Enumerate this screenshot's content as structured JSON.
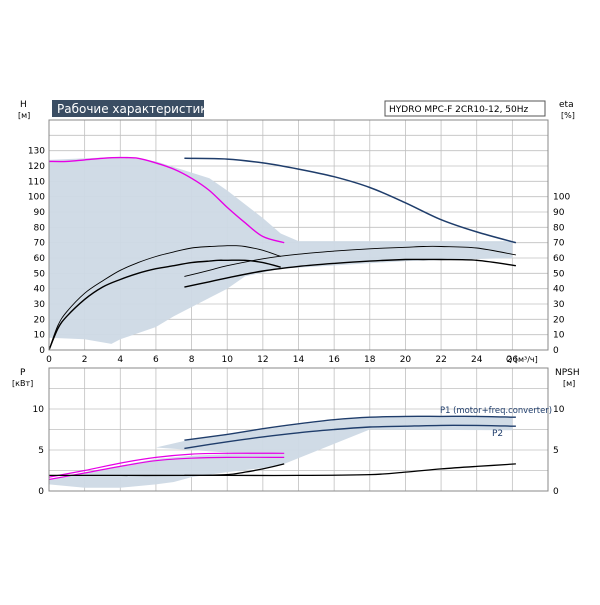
{
  "chart_data": [
    {
      "type": "line",
      "title": "Рабочие характеристики",
      "subtitle": "HYDRO MPC-F 2CR10-12, 50Hz",
      "xlabel": "Q [м³/ч]",
      "ylabel": "H",
      "ylabel_unit": "[м]",
      "y2label": "eta",
      "y2label_unit": "[%]",
      "xlim": [
        0,
        28
      ],
      "ylim": [
        0,
        150
      ],
      "y2lim": [
        0,
        150
      ],
      "grid": true,
      "x_ticks": [
        "0",
        "2",
        "4",
        "6",
        "8",
        "10",
        "12",
        "14",
        "16",
        "18",
        "20",
        "22",
        "24",
        "26"
      ],
      "y_ticks": [
        "0",
        "10",
        "20",
        "30",
        "40",
        "50",
        "60",
        "70",
        "80",
        "90",
        "100",
        "110",
        "120",
        "130"
      ],
      "y2_ticks": [
        "0",
        "10",
        "20",
        "30",
        "40",
        "50",
        "60",
        "70",
        "80",
        "90",
        "100"
      ],
      "colors": {
        "region": "#cdd9e5",
        "head_single": "#e600e6",
        "head_max": "#1f3d6b",
        "eta": "#000000",
        "grid": "#c0c0c0",
        "title_box": "#3a4d63"
      },
      "region": [
        [
          0,
          124
        ],
        [
          4,
          126
        ],
        [
          6,
          123
        ],
        [
          9,
          112
        ],
        [
          10,
          104
        ],
        [
          12,
          86
        ],
        [
          13,
          76
        ],
        [
          14,
          71
        ],
        [
          26,
          71
        ],
        [
          26,
          60
        ],
        [
          20,
          58
        ],
        [
          13,
          53
        ],
        [
          11,
          48
        ],
        [
          10,
          40
        ],
        [
          9,
          34
        ],
        [
          7,
          22
        ],
        [
          6,
          15
        ],
        [
          4,
          7
        ],
        [
          3.5,
          4
        ],
        [
          2,
          7
        ],
        [
          0,
          8
        ]
      ],
      "series": [
        {
          "name": "",
          "role": "head_single",
          "x": [
            0,
            1,
            2,
            3,
            4,
            5,
            6,
            7,
            8,
            9,
            10,
            11,
            12,
            13.2
          ],
          "y": [
            123,
            123,
            124,
            125,
            125.5,
            125,
            122,
            118,
            112,
            104,
            93,
            83,
            74,
            70
          ]
        },
        {
          "name": "",
          "role": "head_max",
          "x": [
            7.6,
            10,
            12,
            14,
            16,
            18,
            20,
            22,
            24,
            26.2
          ],
          "y": [
            125,
            124.5,
            122,
            118,
            113,
            106,
            96,
            85,
            77,
            70
          ]
        },
        {
          "name": "",
          "role": "eta",
          "x": [
            0,
            0.5,
            1,
            2,
            3,
            4,
            5,
            6,
            7,
            8,
            9,
            10,
            10.5,
            11,
            12,
            13
          ],
          "y": [
            0,
            16,
            25,
            37,
            45,
            52,
            57,
            61,
            64,
            66.5,
            67.5,
            68,
            68,
            67.5,
            65,
            61
          ]
        },
        {
          "name": "",
          "role": "eta",
          "x": [
            0,
            0.5,
            1,
            2,
            3,
            4,
            5,
            6,
            7,
            8,
            9,
            9.5,
            10,
            11,
            12,
            13
          ],
          "y": [
            0,
            14,
            22,
            33,
            41,
            46,
            50,
            53,
            55,
            57,
            58,
            58.5,
            58.5,
            58.5,
            57,
            54
          ]
        },
        {
          "name": "",
          "role": "eta",
          "x": [
            7.6,
            9,
            10,
            12,
            14,
            16,
            18,
            20,
            21,
            22,
            24,
            26.2
          ],
          "y": [
            48,
            52,
            55,
            59.5,
            62.5,
            64.5,
            66,
            67,
            67.5,
            67.5,
            66.5,
            62
          ]
        },
        {
          "name": "",
          "role": "eta",
          "x": [
            7.6,
            9,
            10,
            12,
            14,
            16,
            18,
            20,
            21,
            22,
            24,
            26.2
          ],
          "y": [
            41,
            44.5,
            47,
            51.5,
            54.5,
            56.5,
            58,
            59,
            59,
            59,
            58.5,
            55
          ]
        }
      ]
    },
    {
      "type": "line",
      "xlabel": "",
      "ylabel": "P",
      "ylabel_unit": "[кВт]",
      "y2label": "NPSH",
      "y2label_unit": "[м]",
      "xlim": [
        0,
        28
      ],
      "ylim": [
        0,
        15
      ],
      "y2lim": [
        0,
        15
      ],
      "grid": true,
      "y_ticks": [
        "0",
        "5",
        "10"
      ],
      "y2_ticks": [
        "0",
        "5",
        "10"
      ],
      "colors": {
        "region": "#cdd9e5",
        "p1_single": "#e600e6",
        "p_max": "#1f3d6b",
        "npsh": "#000000"
      },
      "region": [
        [
          0,
          1.3
        ],
        [
          2,
          2.2
        ],
        [
          4,
          3.1
        ],
        [
          6,
          3.9
        ],
        [
          8,
          4.3
        ],
        [
          10,
          4.5
        ],
        [
          13.2,
          4.5
        ],
        [
          13.2,
          4.2
        ],
        [
          6,
          5.3
        ],
        [
          8,
          6.3
        ],
        [
          10,
          6.9
        ],
        [
          12,
          7.5
        ],
        [
          14,
          8.1
        ],
        [
          16,
          8.6
        ],
        [
          18,
          9.0
        ],
        [
          26,
          9.1
        ],
        [
          26,
          7.4
        ],
        [
          18,
          7.5
        ],
        [
          13.2,
          3.3
        ],
        [
          12,
          2.8
        ],
        [
          10,
          2.3
        ],
        [
          8,
          1.7
        ],
        [
          7,
          1.1
        ],
        [
          6,
          0.8
        ],
        [
          4,
          0.4
        ],
        [
          2,
          0.4
        ],
        [
          0,
          0.8
        ]
      ],
      "labels": {
        "p1": "P1 (motor+freq.converter)",
        "p2": "P2"
      },
      "series": [
        {
          "name": "P1 (motor+freq.converter)",
          "role": "p1_single",
          "x": [
            0,
            2,
            4,
            6,
            8,
            10,
            13.2
          ],
          "y": [
            1.7,
            2.5,
            3.4,
            4.1,
            4.5,
            4.6,
            4.6
          ]
        },
        {
          "name": "P2",
          "role": "p1_single",
          "x": [
            0,
            2,
            4,
            6,
            8,
            10,
            13.2
          ],
          "y": [
            1.4,
            2.2,
            3.0,
            3.7,
            4.0,
            4.1,
            4.1
          ]
        },
        {
          "name": "P1 (motor+freq.converter)",
          "role": "p_max",
          "x": [
            7.6,
            10,
            12,
            14,
            16,
            18,
            20,
            22,
            24,
            26.2
          ],
          "y": [
            6.2,
            6.9,
            7.6,
            8.2,
            8.7,
            9.0,
            9.1,
            9.1,
            9.1,
            9.0
          ]
        },
        {
          "name": "P2",
          "role": "p_max",
          "x": [
            7.6,
            10,
            12,
            14,
            16,
            18,
            20,
            22,
            24,
            26.2
          ],
          "y": [
            5.2,
            6.0,
            6.6,
            7.1,
            7.5,
            7.8,
            7.9,
            8.0,
            8.0,
            7.9
          ]
        },
        {
          "name": "",
          "role": "npsh",
          "x": [
            0,
            4,
            8,
            10,
            11,
            12,
            13.2
          ],
          "y": [
            1.9,
            1.9,
            1.9,
            2.0,
            2.3,
            2.7,
            3.3
          ]
        },
        {
          "name": "",
          "role": "npsh",
          "x": [
            7.6,
            10,
            14,
            18,
            20,
            22,
            24,
            26.2
          ],
          "y": [
            1.9,
            1.9,
            1.9,
            2.0,
            2.3,
            2.7,
            3.0,
            3.3
          ]
        }
      ]
    }
  ]
}
